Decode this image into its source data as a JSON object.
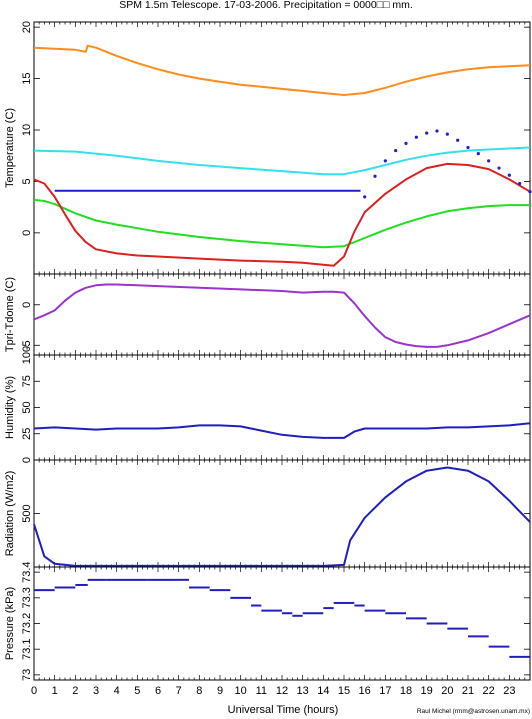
{
  "chart_data": {
    "type": "line",
    "title": "SPM 1.5m Telescope.  17-03-2006.  Precipitation =  0000□□ mm.",
    "xlabel": "Universal Time (hours)",
    "credit": "Raul Michel (rmm@astrosen.unam.mx)",
    "xlim": [
      0,
      24
    ],
    "x_ticks": [
      0,
      1,
      2,
      3,
      4,
      5,
      6,
      7,
      8,
      9,
      10,
      11,
      12,
      13,
      14,
      15,
      16,
      17,
      18,
      19,
      20,
      21,
      22,
      23
    ],
    "panels": [
      {
        "ylabel": "Temperature (C)",
        "ylim": [
          -4,
          20.5
        ],
        "y_ticks": [
          0,
          5,
          10,
          15,
          20
        ],
        "series": [
          {
            "color": "#ff8c1a",
            "kind": "line",
            "x": [
              0,
              1,
              2,
              2.5,
              2.6,
              3,
              4,
              5,
              6,
              7,
              8,
              9,
              10,
              11,
              12,
              13,
              14,
              15,
              16,
              17,
              18,
              19,
              20,
              21,
              22,
              23,
              24
            ],
            "y": [
              18.0,
              17.9,
              17.8,
              17.6,
              18.2,
              18.0,
              17.2,
              16.5,
              15.9,
              15.4,
              15.0,
              14.7,
              14.4,
              14.2,
              14.0,
              13.8,
              13.6,
              13.4,
              13.6,
              14.1,
              14.7,
              15.2,
              15.6,
              15.9,
              16.1,
              16.2,
              16.3
            ]
          },
          {
            "color": "#33e0ee",
            "kind": "line",
            "x": [
              0,
              2,
              4,
              6,
              8,
              10,
              12,
              14,
              15,
              16,
              17,
              18,
              19,
              20,
              21,
              22,
              23,
              24
            ],
            "y": [
              8.0,
              7.9,
              7.5,
              7.0,
              6.6,
              6.3,
              6.0,
              5.7,
              5.7,
              6.1,
              6.6,
              7.1,
              7.5,
              7.8,
              8.0,
              8.1,
              8.2,
              8.3
            ]
          },
          {
            "color": "#1f1fd0",
            "kind": "line",
            "x": [
              1.0,
              15.8
            ],
            "y": [
              4.1,
              4.1
            ]
          },
          {
            "color": "#22dd22",
            "kind": "line",
            "x": [
              0,
              0.5,
              1,
              2,
              3,
              4,
              6,
              8,
              10,
              12,
              14,
              15,
              16,
              17,
              18,
              19,
              20,
              21,
              22,
              23,
              24
            ],
            "y": [
              3.2,
              3.1,
              2.8,
              1.9,
              1.2,
              0.8,
              0.1,
              -0.4,
              -0.8,
              -1.1,
              -1.4,
              -1.3,
              -0.5,
              0.3,
              1.0,
              1.6,
              2.1,
              2.4,
              2.6,
              2.7,
              2.7
            ]
          },
          {
            "color": "#dd1f1f",
            "kind": "line",
            "x": [
              0,
              0.5,
              1,
              1.5,
              2,
              2.5,
              3,
              4,
              5,
              6,
              8,
              10,
              12,
              13,
              14,
              14.5,
              15,
              15.5,
              16,
              17,
              18,
              19,
              20,
              21,
              22,
              23,
              24
            ],
            "y": [
              5.2,
              4.8,
              3.5,
              1.8,
              0.2,
              -0.9,
              -1.6,
              -2.0,
              -2.2,
              -2.3,
              -2.5,
              -2.7,
              -2.8,
              -2.9,
              -3.1,
              -3.2,
              -2.3,
              0.1,
              2.0,
              3.8,
              5.2,
              6.3,
              6.7,
              6.6,
              6.2,
              5.2,
              4.0
            ]
          },
          {
            "color": "#1f1fd0",
            "kind": "scatter",
            "x": [
              16,
              16.5,
              17,
              17.5,
              18,
              18.5,
              19,
              19.5,
              20,
              20.5,
              21,
              21.5,
              22,
              22.5,
              23,
              23.5,
              24
            ],
            "y": [
              3.5,
              5.5,
              7.0,
              8.0,
              8.7,
              9.3,
              9.7,
              9.9,
              9.6,
              9.0,
              8.3,
              7.7,
              7.0,
              6.3,
              5.6,
              4.8,
              4.0
            ]
          }
        ]
      },
      {
        "ylabel": "Tpri-Tdome (C)",
        "ylim": [
          -6.2,
          3.8
        ],
        "y_ticks": [
          -5,
          0
        ],
        "series": [
          {
            "color": "#9933cc",
            "kind": "line",
            "x": [
              0,
              0.5,
              1,
              1.5,
              2,
              2.5,
              3,
              3.5,
              4,
              5,
              6,
              8,
              10,
              12,
              13,
              14,
              14.5,
              15,
              15.5,
              16,
              16.5,
              17,
              17.5,
              18,
              18.5,
              19,
              19.5,
              20,
              21,
              22,
              23,
              24
            ],
            "y": [
              -1.8,
              -1.3,
              -0.7,
              0.5,
              1.5,
              2.1,
              2.4,
              2.5,
              2.5,
              2.4,
              2.3,
              2.1,
              1.9,
              1.7,
              1.5,
              1.6,
              1.6,
              1.5,
              0.2,
              -1.4,
              -2.8,
              -4.0,
              -4.6,
              -4.9,
              -5.1,
              -5.2,
              -5.2,
              -5.0,
              -4.4,
              -3.5,
              -2.4,
              -1.3
            ]
          }
        ]
      },
      {
        "ylabel": "Humidity (%)",
        "ylim": [
          0,
          100
        ],
        "y_ticks": [
          0,
          25,
          50,
          75,
          100
        ],
        "series": [
          {
            "color": "#1f1fc0",
            "kind": "line",
            "x": [
              0,
              1,
              2,
              3,
              4,
              5,
              6,
              7,
              8,
              9,
              10,
              11,
              12,
              13,
              14,
              15,
              15.5,
              16,
              17,
              18,
              19,
              20,
              21,
              22,
              23,
              24
            ],
            "y": [
              30,
              31,
              30,
              29,
              30,
              30,
              30,
              31,
              33,
              33,
              32,
              28,
              24,
              22,
              21,
              21,
              27,
              30,
              30,
              30,
              30,
              31,
              31,
              32,
              33,
              35
            ]
          }
        ]
      },
      {
        "ylabel": "Radiation (W/m2)",
        "ylim": [
          0,
          1000
        ],
        "y_ticks": [
          500
        ],
        "series": [
          {
            "color": "#1f1fc0",
            "kind": "line",
            "x": [
              0,
              0.5,
              1,
              2,
              4,
              6,
              8,
              10,
              12,
              14,
              15,
              15.3,
              16,
              17,
              18,
              19,
              20,
              21,
              22,
              23,
              24
            ],
            "y": [
              400,
              100,
              30,
              10,
              10,
              10,
              10,
              10,
              10,
              10,
              20,
              250,
              460,
              650,
              800,
              900,
              930,
              900,
              800,
              620,
              420
            ]
          }
        ]
      },
      {
        "ylabel": "Pressure (kPa)",
        "ylim": [
          72.98,
          73.42
        ],
        "y_ticks": [
          "73",
          "73.1",
          "73.2",
          "73.3",
          "73.4"
        ],
        "series": [
          {
            "color": "#1f1fc0",
            "kind": "steps",
            "x": [
              0,
              1,
              2,
              2.6,
              3.5,
              4.5,
              5.5,
              6.8,
              7.5,
              8.5,
              9.5,
              10.5,
              11,
              12,
              12.5,
              13,
              14,
              14.5,
              15,
              15.5,
              16,
              17,
              18,
              19,
              20,
              21,
              22,
              23,
              24
            ],
            "y": [
              73.33,
              73.34,
              73.35,
              73.37,
              73.37,
              73.37,
              73.37,
              73.37,
              73.34,
              73.33,
              73.3,
              73.27,
              73.25,
              73.24,
              73.23,
              73.24,
              73.26,
              73.28,
              73.28,
              73.27,
              73.25,
              73.24,
              73.22,
              73.2,
              73.18,
              73.15,
              73.11,
              73.07,
              73.01
            ]
          }
        ]
      }
    ]
  }
}
